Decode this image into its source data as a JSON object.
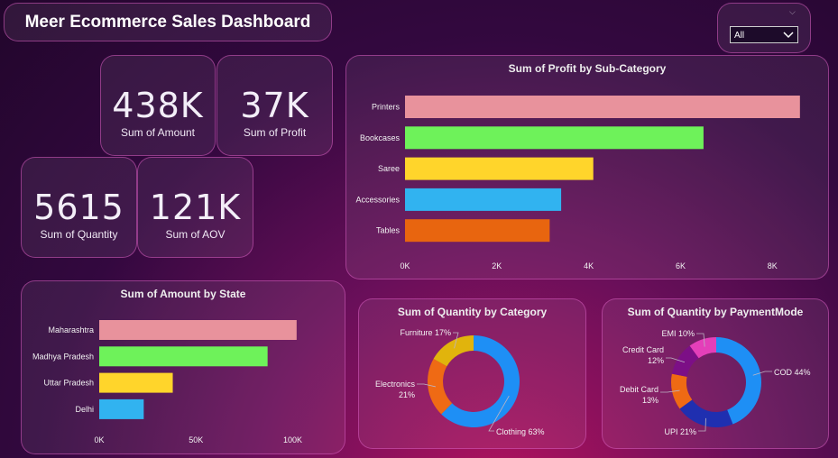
{
  "header": {
    "title": "Meer Ecommerce Sales Dashboard"
  },
  "filter": {
    "selected": "All"
  },
  "kpis": [
    {
      "value": "438K",
      "label": "Sum of Amount"
    },
    {
      "value": "37K",
      "label": "Sum of Profit"
    },
    {
      "value": "5615",
      "label": "Sum of Quantity"
    },
    {
      "value": "121K",
      "label": "Sum of AOV"
    }
  ],
  "chart_data": [
    {
      "type": "bar",
      "orientation": "horizontal",
      "title": "Sum of Profit by Sub-Category",
      "categories": [
        "Printers",
        "Bookcases",
        "Saree",
        "Accessories",
        "Tables"
      ],
      "values": [
        8600,
        6500,
        4100,
        3400,
        3150
      ],
      "colors": [
        "#e8929c",
        "#6ef25a",
        "#ffd52b",
        "#31b3f0",
        "#e8650f"
      ],
      "xlim": [
        0,
        8800
      ],
      "xticks": [
        0,
        2000,
        4000,
        6000,
        8000
      ],
      "xtick_labels": [
        "0K",
        "2K",
        "4K",
        "6K",
        "8K"
      ]
    },
    {
      "type": "bar",
      "orientation": "horizontal",
      "title": "Sum of Amount by State",
      "categories": [
        "Maharashtra",
        "Madhya Pradesh",
        "Uttar Pradesh",
        "Delhi"
      ],
      "values": [
        102000,
        87000,
        38000,
        23000
      ],
      "colors": [
        "#e8929c",
        "#6ef25a",
        "#ffd52b",
        "#31b3f0"
      ],
      "xlim": [
        0,
        110000
      ],
      "xticks": [
        0,
        50000,
        100000
      ],
      "xtick_labels": [
        "0K",
        "50K",
        "100K"
      ]
    },
    {
      "type": "pie",
      "donut": true,
      "title": "Sum of Quantity by Category",
      "labels": [
        "Clothing",
        "Electronics",
        "Furniture"
      ],
      "values": [
        63,
        21,
        17
      ],
      "display": [
        "Clothing 63%",
        "Electronics\n21%",
        "Furniture 17%"
      ],
      "colors": [
        "#1e8ff5",
        "#ef6a14",
        "#e1b40c"
      ]
    },
    {
      "type": "pie",
      "donut": true,
      "title": "Sum of Quantity by PaymentMode",
      "labels": [
        "COD",
        "UPI",
        "Debit Card",
        "Credit Card",
        "EMI"
      ],
      "values": [
        44,
        21,
        13,
        12,
        10
      ],
      "display": [
        "COD 44%",
        "UPI 21%",
        "Debit Card\n13%",
        "Credit Card\n12%",
        "EMI 10%"
      ],
      "colors": [
        "#1e8ff5",
        "#1f2fb0",
        "#ef6a14",
        "#7c0f86",
        "#e43fb9"
      ]
    }
  ]
}
